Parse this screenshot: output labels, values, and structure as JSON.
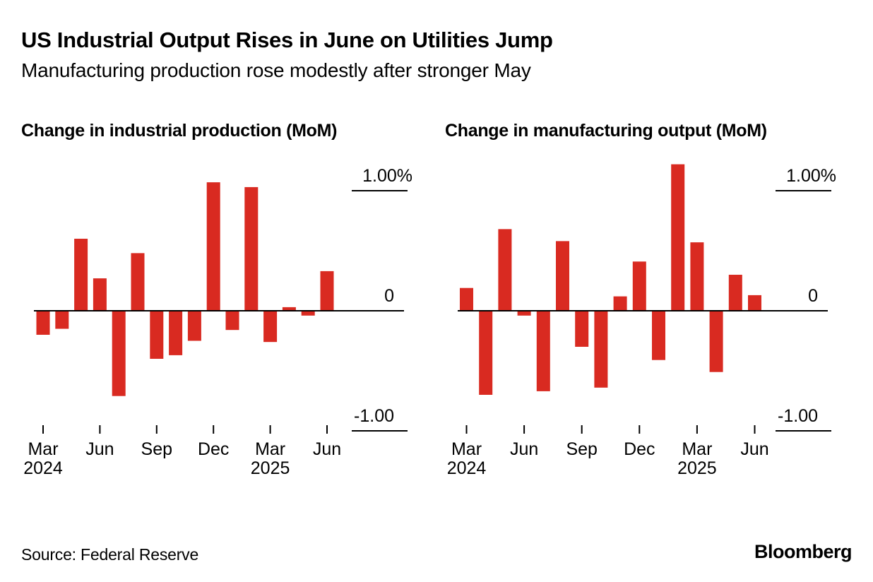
{
  "header": {
    "title": "US Industrial Output Rises in June on Utilities Jump",
    "subtitle": "Manufacturing production rose modestly after stronger May"
  },
  "colors": {
    "background": "#ffffff",
    "text": "#000000",
    "bar": "#d92a21",
    "axis": "#000000"
  },
  "chart_data": [
    {
      "type": "bar",
      "title": "Change in industrial production (MoM)",
      "unit": "%",
      "x": [
        "Mar 2024",
        "Apr 2024",
        "May 2024",
        "Jun 2024",
        "Jul 2024",
        "Aug 2024",
        "Sep 2024",
        "Oct 2024",
        "Nov 2024",
        "Dec 2024",
        "Jan 2025",
        "Feb 2025",
        "Mar 2025",
        "Apr 2025",
        "May 2025",
        "Jun 2025"
      ],
      "values": [
        -0.2,
        -0.15,
        0.6,
        0.27,
        -0.71,
        0.48,
        -0.4,
        -0.37,
        -0.25,
        1.07,
        -0.16,
        1.03,
        -0.26,
        0.03,
        -0.04,
        0.33
      ],
      "ylim": [
        -1.0,
        1.3
      ],
      "grid": "right-tick-labels",
      "legend": "none",
      "yticks": [
        {
          "value": 1.0,
          "label": "1.00%",
          "tick_line": true
        },
        {
          "value": 0,
          "label": "0",
          "tick_line": false
        },
        {
          "value": -1.0,
          "label": "-1.00",
          "tick_line": true
        }
      ],
      "xticks": [
        {
          "index": 0,
          "label": "Mar",
          "year": "2024"
        },
        {
          "index": 3,
          "label": "Jun",
          "year": ""
        },
        {
          "index": 6,
          "label": "Sep",
          "year": ""
        },
        {
          "index": 9,
          "label": "Dec",
          "year": ""
        },
        {
          "index": 12,
          "label": "Mar",
          "year": "2025"
        },
        {
          "index": 15,
          "label": "Jun",
          "year": ""
        }
      ]
    },
    {
      "type": "bar",
      "title": "Change in manufacturing output (MoM)",
      "unit": "%",
      "x": [
        "Mar 2024",
        "Apr 2024",
        "May 2024",
        "Jun 2024",
        "Jul 2024",
        "Aug 2024",
        "Sep 2024",
        "Oct 2024",
        "Nov 2024",
        "Dec 2024",
        "Jan 2025",
        "Feb 2025",
        "Mar 2025",
        "Apr 2025",
        "May 2025",
        "Jun 2025"
      ],
      "values": [
        0.19,
        -0.7,
        0.68,
        -0.04,
        -0.67,
        0.58,
        -0.3,
        -0.64,
        0.12,
        0.41,
        -0.41,
        1.22,
        0.57,
        -0.51,
        0.3,
        0.13
      ],
      "ylim": [
        -1.0,
        1.3
      ],
      "grid": "right-tick-labels",
      "legend": "none",
      "yticks": [
        {
          "value": 1.0,
          "label": "1.00%",
          "tick_line": true
        },
        {
          "value": 0,
          "label": "0",
          "tick_line": false
        },
        {
          "value": -1.0,
          "label": "-1.00",
          "tick_line": true
        }
      ],
      "xticks": [
        {
          "index": 0,
          "label": "Mar",
          "year": "2024"
        },
        {
          "index": 3,
          "label": "Jun",
          "year": ""
        },
        {
          "index": 6,
          "label": "Sep",
          "year": ""
        },
        {
          "index": 9,
          "label": "Dec",
          "year": ""
        },
        {
          "index": 12,
          "label": "Mar",
          "year": "2025"
        },
        {
          "index": 15,
          "label": "Jun",
          "year": ""
        }
      ]
    }
  ],
  "footer": {
    "source": "Source: Federal Reserve",
    "logo": "Bloomberg"
  }
}
